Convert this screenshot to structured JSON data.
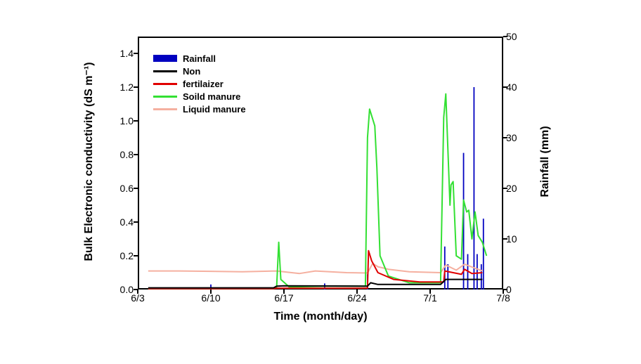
{
  "chart": {
    "type": "dual-axis-line-bar",
    "background_color": "#ffffff",
    "border_color": "#000000",
    "xlabel": "Time (month/day)",
    "ylabel_left": "Bulk Electronic conductivity (dS m⁻¹)",
    "ylabel_right": "Rainfall (mm)",
    "label_fontsize": 16,
    "tick_fontsize": 14,
    "x": {
      "min": 0,
      "max": 35,
      "ticks": [
        0,
        7,
        14,
        21,
        28,
        35
      ],
      "tick_labels": [
        "6/3",
        "6/10",
        "6/17",
        "6/24",
        "7/1",
        "7/8"
      ]
    },
    "y_left": {
      "min": 0.0,
      "max": 1.5,
      "ticks": [
        0.0,
        0.2,
        0.4,
        0.6,
        0.8,
        1.0,
        1.2,
        1.4
      ],
      "tick_labels": [
        "0.0",
        "0.2",
        "0.4",
        "0.6",
        "0.8",
        "1.0",
        "1.2",
        "1.4"
      ]
    },
    "y_right": {
      "min": 0,
      "max": 50,
      "ticks": [
        0,
        10,
        20,
        30,
        40,
        50
      ],
      "tick_labels": [
        "0",
        "10",
        "20",
        "30",
        "40",
        "50"
      ]
    },
    "legend": {
      "position": "upper-left",
      "items": [
        {
          "label": "Rainfall",
          "type": "bar",
          "color": "#0000c0"
        },
        {
          "label": "Non",
          "type": "line",
          "color": "#000000"
        },
        {
          "label": "fertilaizer",
          "type": "line",
          "color": "#e00000"
        },
        {
          "label": "Soild manure",
          "type": "line",
          "color": "#33e033"
        },
        {
          "label": "Liquid manure",
          "type": "line",
          "color": "#f5b0a0"
        }
      ]
    },
    "rainfall_bars": {
      "color": "#0000c0",
      "width_days": 0.12,
      "points": [
        {
          "x": 7.0,
          "h": 1.0
        },
        {
          "x": 17.9,
          "h": 1.2
        },
        {
          "x": 22.0,
          "h": 3.0
        },
        {
          "x": 29.4,
          "h": 8.5
        },
        {
          "x": 29.7,
          "h": 5.0
        },
        {
          "x": 31.2,
          "h": 27.0
        },
        {
          "x": 31.6,
          "h": 7.0
        },
        {
          "x": 32.2,
          "h": 40.0
        },
        {
          "x": 32.5,
          "h": 7.0
        },
        {
          "x": 32.9,
          "h": 5.0
        },
        {
          "x": 33.1,
          "h": 14.0
        }
      ]
    },
    "series": {
      "non": {
        "color": "#000000",
        "line_width": 2,
        "points": [
          {
            "x": 1.0,
            "y": 0.01
          },
          {
            "x": 13.0,
            "y": 0.01
          },
          {
            "x": 13.3,
            "y": 0.02
          },
          {
            "x": 14.0,
            "y": 0.022
          },
          {
            "x": 22.0,
            "y": 0.02
          },
          {
            "x": 22.3,
            "y": 0.04
          },
          {
            "x": 23.0,
            "y": 0.03
          },
          {
            "x": 29.0,
            "y": 0.03
          },
          {
            "x": 29.5,
            "y": 0.06
          },
          {
            "x": 33.0,
            "y": 0.06
          }
        ]
      },
      "fertilizer": {
        "color": "#e00000",
        "line_width": 2,
        "points": [
          {
            "x": 1.0,
            "y": 0.005
          },
          {
            "x": 13.0,
            "y": 0.005
          },
          {
            "x": 13.3,
            "y": 0.008
          },
          {
            "x": 22.0,
            "y": 0.008
          },
          {
            "x": 22.1,
            "y": 0.23
          },
          {
            "x": 22.4,
            "y": 0.17
          },
          {
            "x": 23.0,
            "y": 0.1
          },
          {
            "x": 24.5,
            "y": 0.06
          },
          {
            "x": 27.0,
            "y": 0.045
          },
          {
            "x": 29.3,
            "y": 0.045
          },
          {
            "x": 29.4,
            "y": 0.11
          },
          {
            "x": 31.0,
            "y": 0.09
          },
          {
            "x": 31.3,
            "y": 0.12
          },
          {
            "x": 32.0,
            "y": 0.095
          },
          {
            "x": 33.0,
            "y": 0.1
          }
        ]
      },
      "solid_manure": {
        "color": "#33e033",
        "line_width": 2,
        "points": [
          {
            "x": 1.0,
            "y": 0.005
          },
          {
            "x": 13.0,
            "y": 0.005
          },
          {
            "x": 13.3,
            "y": 0.015
          },
          {
            "x": 13.5,
            "y": 0.28
          },
          {
            "x": 13.7,
            "y": 0.06
          },
          {
            "x": 14.5,
            "y": 0.015
          },
          {
            "x": 18.0,
            "y": 0.02
          },
          {
            "x": 21.8,
            "y": 0.02
          },
          {
            "x": 22.0,
            "y": 0.9
          },
          {
            "x": 22.2,
            "y": 1.07
          },
          {
            "x": 22.7,
            "y": 0.97
          },
          {
            "x": 22.9,
            "y": 0.72
          },
          {
            "x": 23.2,
            "y": 0.2
          },
          {
            "x": 24.0,
            "y": 0.08
          },
          {
            "x": 26.0,
            "y": 0.04
          },
          {
            "x": 29.0,
            "y": 0.04
          },
          {
            "x": 29.3,
            "y": 1.02
          },
          {
            "x": 29.5,
            "y": 1.16
          },
          {
            "x": 29.9,
            "y": 0.5
          },
          {
            "x": 30.0,
            "y": 0.62
          },
          {
            "x": 30.2,
            "y": 0.64
          },
          {
            "x": 30.5,
            "y": 0.2
          },
          {
            "x": 31.0,
            "y": 0.18
          },
          {
            "x": 31.2,
            "y": 0.53
          },
          {
            "x": 31.5,
            "y": 0.46
          },
          {
            "x": 31.7,
            "y": 0.47
          },
          {
            "x": 32.0,
            "y": 0.3
          },
          {
            "x": 32.3,
            "y": 0.46
          },
          {
            "x": 32.6,
            "y": 0.32
          },
          {
            "x": 33.0,
            "y": 0.28
          },
          {
            "x": 33.4,
            "y": 0.2
          }
        ]
      },
      "liquid_manure": {
        "color": "#f5b0a0",
        "line_width": 2,
        "points": [
          {
            "x": 1.0,
            "y": 0.11
          },
          {
            "x": 4.0,
            "y": 0.11
          },
          {
            "x": 7.0,
            "y": 0.108
          },
          {
            "x": 10.0,
            "y": 0.105
          },
          {
            "x": 13.3,
            "y": 0.11
          },
          {
            "x": 15.5,
            "y": 0.095
          },
          {
            "x": 17.0,
            "y": 0.11
          },
          {
            "x": 20.0,
            "y": 0.1
          },
          {
            "x": 22.0,
            "y": 0.098
          },
          {
            "x": 22.5,
            "y": 0.155
          },
          {
            "x": 23.0,
            "y": 0.135
          },
          {
            "x": 24.0,
            "y": 0.12
          },
          {
            "x": 26.0,
            "y": 0.105
          },
          {
            "x": 29.0,
            "y": 0.1
          },
          {
            "x": 29.5,
            "y": 0.145
          },
          {
            "x": 30.5,
            "y": 0.115
          },
          {
            "x": 31.3,
            "y": 0.15
          },
          {
            "x": 33.0,
            "y": 0.11
          }
        ]
      }
    }
  }
}
